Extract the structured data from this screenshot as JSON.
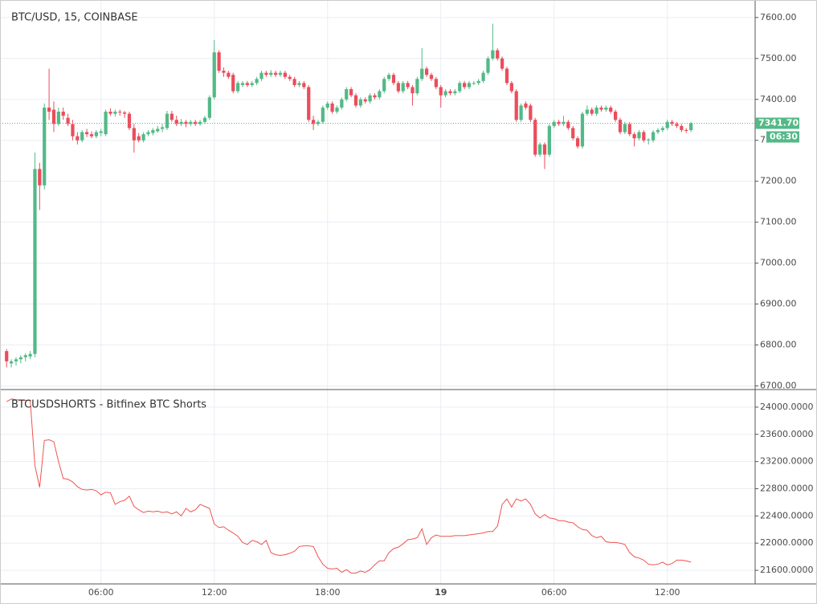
{
  "chart_data": [
    {
      "type": "candlestick",
      "title": "BTC/USD, 15, COINBASE",
      "up_color": "#53b987",
      "down_color": "#eb4d5c",
      "xlim": [
        -1.4,
        158.6
      ],
      "ylim": [
        6695,
        7635
      ],
      "yticks": [
        {
          "value": 6700,
          "label": "6700.00"
        },
        {
          "value": 6800,
          "label": "6800.00"
        },
        {
          "value": 6900,
          "label": "6900.00"
        },
        {
          "value": 7000,
          "label": "7000.00"
        },
        {
          "value": 7100,
          "label": "7100.00"
        },
        {
          "value": 7200,
          "label": "7200.00"
        },
        {
          "value": 7300,
          "label": "7300.00"
        },
        {
          "value": 7400,
          "label": "7400.00"
        },
        {
          "value": 7500,
          "label": "7500.00"
        },
        {
          "value": 7600,
          "label": "7600.00"
        }
      ],
      "xticks": [
        {
          "value": 20,
          "label": "06:00"
        },
        {
          "value": 44,
          "label": "12:00"
        },
        {
          "value": 68,
          "label": "18:00"
        },
        {
          "value": 92,
          "label": "19"
        },
        {
          "value": 116,
          "label": "06:00"
        },
        {
          "value": 140,
          "label": "12:00"
        }
      ],
      "grid": true,
      "last_price": {
        "value": 7341.7,
        "label": "7341.70"
      },
      "countdown": "06:30",
      "ohlc": [
        [
          6785,
          6790,
          6745,
          6760
        ],
        [
          6755,
          6765,
          6745,
          6760
        ],
        [
          6760,
          6770,
          6750,
          6765
        ],
        [
          6765,
          6775,
          6755,
          6770
        ],
        [
          6770,
          6780,
          6760,
          6775
        ],
        [
          6772,
          6785,
          6765,
          6778
        ],
        [
          6778,
          7270,
          6770,
          7230
        ],
        [
          7230,
          7245,
          7130,
          7190
        ],
        [
          7190,
          7390,
          7180,
          7380
        ],
        [
          7380,
          7475,
          7350,
          7370
        ],
        [
          7375,
          7395,
          7320,
          7340
        ],
        [
          7340,
          7380,
          7335,
          7370
        ],
        [
          7370,
          7380,
          7350,
          7360
        ],
        [
          7355,
          7365,
          7335,
          7340
        ],
        [
          7340,
          7350,
          7300,
          7310
        ],
        [
          7310,
          7320,
          7290,
          7300
        ],
        [
          7300,
          7325,
          7295,
          7320
        ],
        [
          7320,
          7328,
          7308,
          7315
        ],
        [
          7315,
          7322,
          7305,
          7310
        ],
        [
          7310,
          7325,
          7305,
          7320
        ],
        [
          7318,
          7328,
          7310,
          7322
        ],
        [
          7315,
          7375,
          7310,
          7370
        ],
        [
          7370,
          7378,
          7360,
          7365
        ],
        [
          7365,
          7375,
          7358,
          7370
        ],
        [
          7370,
          7375,
          7360,
          7368
        ],
        [
          7368,
          7372,
          7355,
          7365
        ],
        [
          7365,
          7370,
          7325,
          7330
        ],
        [
          7330,
          7340,
          7270,
          7300
        ],
        [
          7310,
          7318,
          7295,
          7300
        ],
        [
          7300,
          7320,
          7295,
          7315
        ],
        [
          7315,
          7325,
          7310,
          7320
        ],
        [
          7318,
          7330,
          7312,
          7325
        ],
        [
          7322,
          7335,
          7318,
          7328
        ],
        [
          7328,
          7340,
          7320,
          7332
        ],
        [
          7330,
          7372,
          7325,
          7365
        ],
        [
          7365,
          7372,
          7345,
          7350
        ],
        [
          7350,
          7360,
          7335,
          7340
        ],
        [
          7340,
          7352,
          7335,
          7345
        ],
        [
          7345,
          7350,
          7332,
          7340
        ],
        [
          7340,
          7350,
          7335,
          7345
        ],
        [
          7345,
          7350,
          7335,
          7340
        ],
        [
          7340,
          7350,
          7336,
          7345
        ],
        [
          7345,
          7360,
          7340,
          7355
        ],
        [
          7355,
          7410,
          7350,
          7405
        ],
        [
          7405,
          7545,
          7400,
          7515
        ],
        [
          7515,
          7520,
          7465,
          7470
        ],
        [
          7470,
          7478,
          7455,
          7465
        ],
        [
          7465,
          7470,
          7450,
          7455
        ],
        [
          7460,
          7465,
          7415,
          7420
        ],
        [
          7420,
          7445,
          7415,
          7440
        ],
        [
          7435,
          7445,
          7430,
          7440
        ],
        [
          7440,
          7445,
          7430,
          7435
        ],
        [
          7435,
          7445,
          7430,
          7440
        ],
        [
          7440,
          7455,
          7435,
          7450
        ],
        [
          7450,
          7470,
          7445,
          7465
        ],
        [
          7465,
          7470,
          7455,
          7460
        ],
        [
          7460,
          7472,
          7455,
          7465
        ],
        [
          7465,
          7470,
          7455,
          7460
        ],
        [
          7460,
          7470,
          7455,
          7465
        ],
        [
          7465,
          7470,
          7450,
          7455
        ],
        [
          7455,
          7460,
          7445,
          7450
        ],
        [
          7450,
          7455,
          7430,
          7435
        ],
        [
          7435,
          7445,
          7430,
          7440
        ],
        [
          7440,
          7445,
          7425,
          7430
        ],
        [
          7430,
          7435,
          7345,
          7350
        ],
        [
          7350,
          7360,
          7325,
          7340
        ],
        [
          7340,
          7350,
          7335,
          7345
        ],
        [
          7345,
          7385,
          7340,
          7380
        ],
        [
          7380,
          7395,
          7375,
          7390
        ],
        [
          7390,
          7395,
          7365,
          7370
        ],
        [
          7370,
          7385,
          7365,
          7380
        ],
        [
          7380,
          7405,
          7375,
          7400
        ],
        [
          7400,
          7430,
          7395,
          7425
        ],
        [
          7425,
          7430,
          7405,
          7410
        ],
        [
          7410,
          7415,
          7380,
          7385
        ],
        [
          7385,
          7405,
          7380,
          7400
        ],
        [
          7400,
          7405,
          7390,
          7395
        ],
        [
          7395,
          7415,
          7390,
          7410
        ],
        [
          7410,
          7415,
          7400,
          7405
        ],
        [
          7405,
          7425,
          7400,
          7420
        ],
        [
          7420,
          7455,
          7415,
          7450
        ],
        [
          7450,
          7465,
          7445,
          7460
        ],
        [
          7460,
          7465,
          7435,
          7440
        ],
        [
          7440,
          7445,
          7415,
          7420
        ],
        [
          7420,
          7445,
          7415,
          7440
        ],
        [
          7440,
          7445,
          7425,
          7430
        ],
        [
          7430,
          7435,
          7385,
          7415
        ],
        [
          7415,
          7455,
          7410,
          7450
        ],
        [
          7450,
          7525,
          7445,
          7475
        ],
        [
          7475,
          7480,
          7455,
          7460
        ],
        [
          7460,
          7465,
          7445,
          7450
        ],
        [
          7450,
          7455,
          7425,
          7430
        ],
        [
          7430,
          7435,
          7380,
          7410
        ],
        [
          7410,
          7425,
          7405,
          7420
        ],
        [
          7420,
          7425,
          7410,
          7415
        ],
        [
          7415,
          7425,
          7410,
          7420
        ],
        [
          7420,
          7445,
          7415,
          7440
        ],
        [
          7440,
          7445,
          7425,
          7430
        ],
        [
          7430,
          7445,
          7425,
          7440
        ],
        [
          7440,
          7445,
          7435,
          7440
        ],
        [
          7440,
          7450,
          7435,
          7445
        ],
        [
          7445,
          7470,
          7440,
          7465
        ],
        [
          7465,
          7505,
          7460,
          7500
        ],
        [
          7500,
          7585,
          7495,
          7520
        ],
        [
          7520,
          7525,
          7495,
          7500
        ],
        [
          7500,
          7505,
          7470,
          7475
        ],
        [
          7475,
          7480,
          7435,
          7440
        ],
        [
          7440,
          7445,
          7415,
          7420
        ],
        [
          7420,
          7425,
          7345,
          7350
        ],
        [
          7350,
          7390,
          7345,
          7385
        ],
        [
          7390,
          7395,
          7375,
          7380
        ],
        [
          7385,
          7390,
          7345,
          7350
        ],
        [
          7350,
          7355,
          7260,
          7265
        ],
        [
          7265,
          7295,
          7260,
          7290
        ],
        [
          7290,
          7295,
          7230,
          7265
        ],
        [
          7265,
          7340,
          7260,
          7335
        ],
        [
          7335,
          7350,
          7330,
          7345
        ],
        [
          7345,
          7350,
          7335,
          7340
        ],
        [
          7340,
          7360,
          7335,
          7345
        ],
        [
          7345,
          7350,
          7325,
          7330
        ],
        [
          7330,
          7335,
          7300,
          7305
        ],
        [
          7305,
          7310,
          7280,
          7285
        ],
        [
          7285,
          7370,
          7280,
          7365
        ],
        [
          7365,
          7385,
          7360,
          7375
        ],
        [
          7375,
          7380,
          7360,
          7365
        ],
        [
          7365,
          7385,
          7360,
          7380
        ],
        [
          7380,
          7385,
          7370,
          7375
        ],
        [
          7375,
          7385,
          7370,
          7380
        ],
        [
          7380,
          7385,
          7365,
          7370
        ],
        [
          7370,
          7375,
          7345,
          7350
        ],
        [
          7350,
          7355,
          7315,
          7320
        ],
        [
          7320,
          7345,
          7315,
          7340
        ],
        [
          7340,
          7345,
          7310,
          7315
        ],
        [
          7315,
          7320,
          7285,
          7305
        ],
        [
          7305,
          7325,
          7300,
          7320
        ],
        [
          7320,
          7325,
          7295,
          7300
        ],
        [
          7300,
          7305,
          7290,
          7302
        ],
        [
          7300,
          7325,
          7295,
          7320
        ],
        [
          7320,
          7330,
          7315,
          7325
        ],
        [
          7325,
          7335,
          7320,
          7330
        ],
        [
          7330,
          7350,
          7325,
          7345
        ],
        [
          7345,
          7350,
          7335,
          7340
        ],
        [
          7340,
          7345,
          7330,
          7335
        ],
        [
          7335,
          7340,
          7320,
          7325
        ],
        [
          7325,
          7330,
          7318,
          7323
        ],
        [
          7325,
          7345,
          7320,
          7341.7
        ]
      ]
    },
    {
      "type": "line",
      "title": "BTCUSDSHORTS - Bitfinex BTC Shorts",
      "color": "#ef5350",
      "ylim": [
        21400,
        24235
      ],
      "yticks": [
        {
          "value": 21600,
          "label": "21600.0000"
        },
        {
          "value": 22000,
          "label": "22000.0000"
        },
        {
          "value": 22400,
          "label": "22400.0000"
        },
        {
          "value": 22800,
          "label": "22800.0000"
        },
        {
          "value": 23200,
          "label": "23200.0000"
        },
        {
          "value": 23600,
          "label": "23600.0000"
        },
        {
          "value": 24000,
          "label": "24000.0000"
        }
      ],
      "values": [
        24080,
        24120,
        24110,
        24100,
        24100,
        24100,
        23140,
        22820,
        23510,
        23520,
        23490,
        23200,
        22950,
        22940,
        22900,
        22830,
        22790,
        22780,
        22790,
        22770,
        22710,
        22750,
        22740,
        22570,
        22610,
        22630,
        22690,
        22540,
        22490,
        22450,
        22470,
        22460,
        22470,
        22450,
        22460,
        22430,
        22460,
        22400,
        22510,
        22460,
        22490,
        22570,
        22540,
        22510,
        22280,
        22230,
        22240,
        22190,
        22150,
        22100,
        22010,
        21980,
        22040,
        22020,
        21980,
        22040,
        21860,
        21830,
        21820,
        21830,
        21850,
        21880,
        21950,
        21960,
        21960,
        21950,
        21800,
        21690,
        21630,
        21620,
        21630,
        21570,
        21610,
        21560,
        21560,
        21590,
        21570,
        21610,
        21680,
        21740,
        21740,
        21860,
        21920,
        21940,
        21990,
        22050,
        22060,
        22080,
        22210,
        21980,
        22080,
        22120,
        22100,
        22100,
        22100,
        22110,
        22110,
        22110,
        22120,
        22130,
        22140,
        22150,
        22170,
        22170,
        22250,
        22570,
        22650,
        22530,
        22650,
        22620,
        22650,
        22570,
        22430,
        22370,
        22420,
        22370,
        22360,
        22330,
        22330,
        22310,
        22300,
        22240,
        22200,
        22190,
        22110,
        22080,
        22100,
        22020,
        22010,
        22010,
        22000,
        21980,
        21860,
        21800,
        21780,
        21750,
        21690,
        21680,
        21690,
        21720,
        21680,
        21700,
        21750,
        21750,
        21740,
        21720
      ]
    }
  ]
}
